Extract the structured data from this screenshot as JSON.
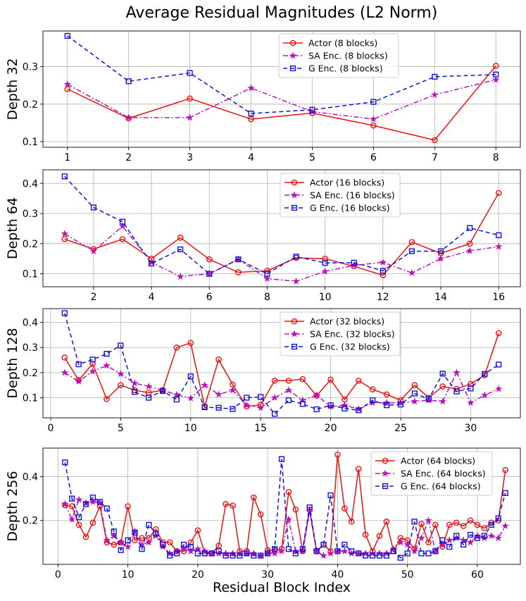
{
  "figure": {
    "title": "Average Residual Magnitudes (L2 Norm)",
    "xlabel": "Residual Block Index"
  },
  "colors": {
    "actor": "#ee1111",
    "sa": "#bb11bb",
    "g": "#1111dd"
  },
  "chart_data": [
    {
      "type": "line",
      "ylabel": "Depth 32",
      "xlim": [
        0.6,
        8.4
      ],
      "ylim": [
        0.085,
        0.395
      ],
      "xticks": [
        1,
        2,
        3,
        4,
        5,
        6,
        7,
        8
      ],
      "yticks": [
        0.1,
        0.2,
        0.3
      ],
      "series": [
        {
          "name": "Actor (8 blocks)",
          "x": [
            1,
            2,
            3,
            4,
            5,
            6,
            7,
            8
          ],
          "values": [
            0.24,
            0.162,
            0.215,
            0.16,
            0.176,
            0.143,
            0.104,
            0.302
          ]
        },
        {
          "name": "SA Enc. (8 blocks)",
          "x": [
            1,
            2,
            3,
            4,
            5,
            6,
            7,
            8
          ],
          "values": [
            0.253,
            0.164,
            0.164,
            0.243,
            0.18,
            0.16,
            0.225,
            0.265
          ]
        },
        {
          "name": "G Enc. (8 blocks)",
          "x": [
            1,
            2,
            3,
            4,
            5,
            6,
            7,
            8
          ],
          "values": [
            0.382,
            0.261,
            0.283,
            0.175,
            0.185,
            0.206,
            0.273,
            0.279
          ]
        }
      ]
    },
    {
      "type": "line",
      "ylabel": "Depth 64",
      "xlim": [
        0.25,
        16.75
      ],
      "ylim": [
        0.057,
        0.445
      ],
      "xticks": [
        2,
        4,
        6,
        8,
        10,
        12,
        14,
        16
      ],
      "yticks": [
        0.1,
        0.2,
        0.3,
        0.4
      ],
      "series": [
        {
          "name": "Actor (16 blocks)",
          "x": [
            1,
            2,
            3,
            4,
            5,
            6,
            7,
            8,
            9,
            10,
            11,
            12,
            13,
            14,
            15,
            16
          ],
          "values": [
            0.215,
            0.182,
            0.215,
            0.15,
            0.22,
            0.148,
            0.105,
            0.11,
            0.153,
            0.15,
            0.125,
            0.095,
            0.205,
            0.168,
            0.2,
            0.368
          ]
        },
        {
          "name": "SA Enc. (16 blocks)",
          "x": [
            1,
            2,
            3,
            4,
            5,
            6,
            7,
            8,
            9,
            10,
            11,
            12,
            13,
            14,
            15,
            16
          ],
          "values": [
            0.233,
            0.175,
            0.258,
            0.138,
            0.091,
            0.1,
            0.148,
            0.084,
            0.075,
            0.108,
            0.128,
            0.138,
            0.103,
            0.15,
            0.176,
            0.19
          ]
        },
        {
          "name": "G Enc. (16 blocks)",
          "x": [
            1,
            2,
            3,
            4,
            5,
            6,
            7,
            8,
            9,
            10,
            11,
            12,
            13,
            14,
            15,
            16
          ],
          "values": [
            0.423,
            0.32,
            0.273,
            0.134,
            0.181,
            0.1,
            0.148,
            0.1,
            0.157,
            0.136,
            0.137,
            0.11,
            0.175,
            0.175,
            0.252,
            0.228
          ]
        }
      ]
    },
    {
      "type": "line",
      "ylabel": "Depth 128",
      "xlim": [
        -0.55,
        33.55
      ],
      "ylim": [
        0.02,
        0.455
      ],
      "xticks": [
        0,
        5,
        10,
        15,
        20,
        25,
        30
      ],
      "yticks": [
        0.1,
        0.2,
        0.3,
        0.4
      ],
      "series": [
        {
          "name": "Actor (32 blocks)",
          "x": [
            1,
            2,
            3,
            4,
            5,
            6,
            7,
            8,
            9,
            10,
            11,
            12,
            13,
            14,
            15,
            16,
            17,
            18,
            19,
            20,
            21,
            22,
            23,
            24,
            25,
            26,
            27,
            28,
            29,
            30,
            31,
            32
          ],
          "values": [
            0.26,
            0.17,
            0.235,
            0.095,
            0.15,
            0.13,
            0.12,
            0.13,
            0.3,
            0.318,
            0.065,
            0.252,
            0.152,
            0.065,
            0.072,
            0.168,
            0.168,
            0.174,
            0.108,
            0.172,
            0.093,
            0.168,
            0.133,
            0.113,
            0.09,
            0.15,
            0.1,
            0.145,
            0.135,
            0.155,
            0.19,
            0.357
          ]
        },
        {
          "name": "SA Enc. (32 blocks)",
          "x": [
            1,
            2,
            3,
            4,
            5,
            6,
            7,
            8,
            9,
            10,
            11,
            12,
            13,
            14,
            15,
            16,
            17,
            18,
            19,
            20,
            21,
            22,
            23,
            24,
            25,
            26,
            27,
            28,
            29,
            30,
            31,
            32
          ],
          "values": [
            0.2,
            0.165,
            0.205,
            0.228,
            0.195,
            0.158,
            0.145,
            0.13,
            0.112,
            0.098,
            0.15,
            0.113,
            0.13,
            0.07,
            0.06,
            0.1,
            0.13,
            0.09,
            0.11,
            0.065,
            0.07,
            0.055,
            0.08,
            0.08,
            0.08,
            0.085,
            0.09,
            0.085,
            0.2,
            0.08,
            0.11,
            0.135
          ]
        },
        {
          "name": "G Enc. (32 blocks)",
          "x": [
            1,
            2,
            3,
            4,
            5,
            6,
            7,
            8,
            9,
            10,
            11,
            12,
            13,
            14,
            15,
            16,
            17,
            18,
            19,
            20,
            21,
            22,
            23,
            24,
            25,
            26,
            27,
            28,
            29,
            30,
            31,
            32
          ],
          "values": [
            0.437,
            0.233,
            0.252,
            0.275,
            0.308,
            0.123,
            0.1,
            0.127,
            0.093,
            0.185,
            0.062,
            0.06,
            0.055,
            0.1,
            0.103,
            0.036,
            0.09,
            0.075,
            0.054,
            0.07,
            0.057,
            0.05,
            0.09,
            0.07,
            0.073,
            0.117,
            0.095,
            0.196,
            0.125,
            0.137,
            0.195,
            0.232
          ]
        }
      ]
    },
    {
      "type": "line",
      "ylabel": "Depth 256",
      "xlim": [
        -2.15,
        66.15
      ],
      "ylim": [
        0.0,
        0.53
      ],
      "xticks": [
        0,
        10,
        20,
        30,
        40,
        50,
        60
      ],
      "yticks": [
        0.2,
        0.4
      ],
      "series": [
        {
          "name": "Actor (64 blocks)",
          "x": [
            1,
            2,
            3,
            4,
            5,
            6,
            7,
            8,
            9,
            10,
            11,
            12,
            13,
            14,
            15,
            16,
            17,
            18,
            19,
            20,
            21,
            22,
            23,
            24,
            25,
            26,
            27,
            28,
            29,
            30,
            31,
            32,
            33,
            34,
            35,
            36,
            37,
            38,
            39,
            40,
            41,
            42,
            43,
            44,
            45,
            46,
            47,
            48,
            49,
            50,
            51,
            52,
            53,
            54,
            55,
            56,
            57,
            58,
            59,
            60,
            61,
            62,
            63,
            64
          ],
          "values": [
            0.27,
            0.265,
            0.18,
            0.125,
            0.19,
            0.265,
            0.1,
            0.09,
            0.1,
            0.265,
            0.11,
            0.12,
            0.12,
            0.16,
            0.1,
            0.1,
            0.06,
            0.06,
            0.1,
            0.155,
            0.05,
            0.05,
            0.085,
            0.275,
            0.268,
            0.06,
            0.06,
            0.305,
            0.228,
            0.065,
            0.065,
            0.07,
            0.33,
            0.25,
            0.06,
            0.25,
            0.06,
            0.09,
            0.06,
            0.5,
            0.255,
            0.195,
            0.435,
            0.135,
            0.06,
            0.13,
            0.195,
            0.06,
            0.12,
            0.11,
            0.07,
            0.185,
            0.1,
            0.18,
            0.08,
            0.18,
            0.19,
            0.175,
            0.2,
            0.18,
            0.165,
            0.19,
            0.2,
            0.43
          ]
        },
        {
          "name": "SA Enc. (64 blocks)",
          "x": [
            1,
            2,
            3,
            4,
            5,
            6,
            7,
            8,
            9,
            10,
            11,
            12,
            13,
            14,
            15,
            16,
            17,
            18,
            19,
            20,
            21,
            22,
            23,
            24,
            25,
            26,
            27,
            28,
            29,
            30,
            31,
            32,
            33,
            34,
            35,
            36,
            37,
            38,
            39,
            40,
            41,
            42,
            43,
            44,
            45,
            46,
            47,
            48,
            49,
            50,
            51,
            52,
            53,
            54,
            55,
            56,
            57,
            58,
            59,
            60,
            61,
            62,
            63,
            64
          ],
          "values": [
            0.275,
            0.205,
            0.295,
            0.28,
            0.285,
            0.28,
            0.11,
            0.13,
            0.1,
            0.08,
            0.15,
            0.09,
            0.1,
            0.13,
            0.08,
            0.05,
            0.06,
            0.07,
            0.06,
            0.07,
            0.06,
            0.05,
            0.05,
            0.05,
            0.05,
            0.05,
            0.05,
            0.05,
            0.04,
            0.05,
            0.05,
            0.06,
            0.205,
            0.06,
            0.06,
            0.24,
            0.06,
            0.04,
            0.05,
            0.06,
            0.06,
            0.05,
            0.05,
            0.05,
            0.05,
            0.05,
            0.05,
            0.07,
            0.1,
            0.09,
            0.06,
            0.12,
            0.2,
            0.06,
            0.09,
            0.11,
            0.12,
            0.11,
            0.1,
            0.13,
            0.12,
            0.13,
            0.12,
            0.175
          ]
        },
        {
          "name": "G Enc. (64 blocks)",
          "x": [
            1,
            2,
            3,
            4,
            5,
            6,
            7,
            8,
            9,
            10,
            11,
            12,
            13,
            14,
            15,
            16,
            17,
            18,
            19,
            20,
            21,
            22,
            23,
            24,
            25,
            26,
            27,
            28,
            29,
            30,
            31,
            32,
            33,
            34,
            35,
            36,
            37,
            38,
            39,
            40,
            41,
            42,
            43,
            44,
            45,
            46,
            47,
            48,
            49,
            50,
            51,
            52,
            53,
            54,
            55,
            56,
            57,
            58,
            59,
            60,
            61,
            62,
            63,
            64
          ],
          "values": [
            0.465,
            0.3,
            0.215,
            0.275,
            0.305,
            0.285,
            0.255,
            0.15,
            0.065,
            0.11,
            0.145,
            0.07,
            0.18,
            0.14,
            0.09,
            0.04,
            0.05,
            0.09,
            0.08,
            0.05,
            0.05,
            0.05,
            0.06,
            0.04,
            0.04,
            0.04,
            0.05,
            0.04,
            0.04,
            0.05,
            0.07,
            0.48,
            0.07,
            0.05,
            0.07,
            0.26,
            0.06,
            0.09,
            0.315,
            0.06,
            0.09,
            0.06,
            0.05,
            0.04,
            0.04,
            0.04,
            0.04,
            0.06,
            0.03,
            0.05,
            0.195,
            0.05,
            0.05,
            0.06,
            0.11,
            0.08,
            0.13,
            0.09,
            0.135,
            0.12,
            0.13,
            0.18,
            0.21,
            0.325
          ]
        }
      ]
    }
  ]
}
